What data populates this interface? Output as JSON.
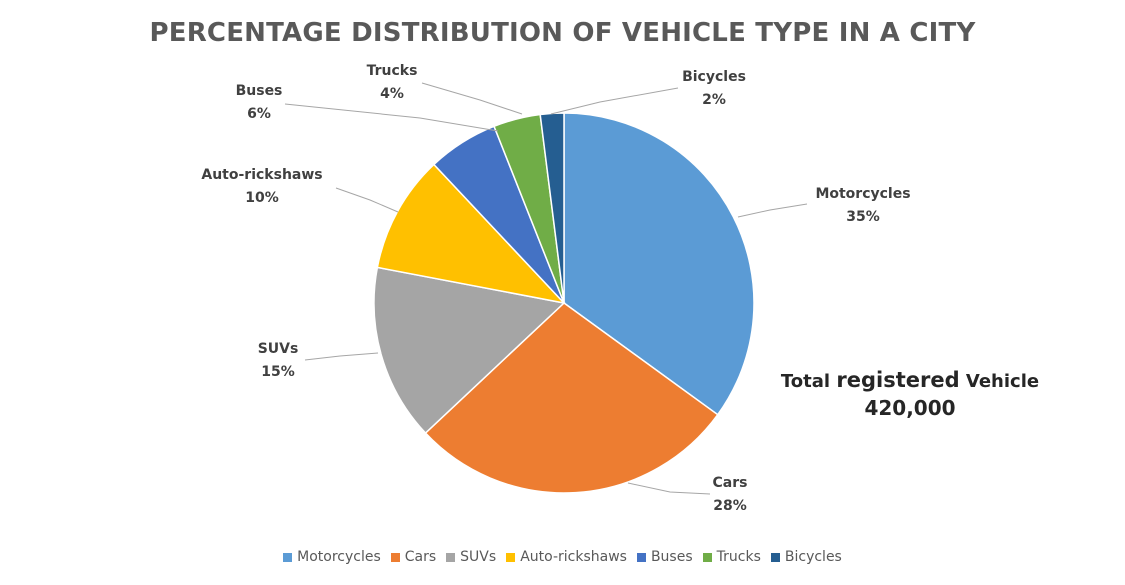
{
  "chart_data": {
    "type": "pie",
    "title": "PERCENTAGE DISTRIBUTION OF VEHICLE TYPE IN A CITY",
    "slices": [
      {
        "label": "Motorcycles",
        "value": 35,
        "value_label": "35%",
        "color": "#5B9BD5"
      },
      {
        "label": "Cars",
        "value": 28,
        "value_label": "28%",
        "color": "#ED7D31"
      },
      {
        "label": "SUVs",
        "value": 15,
        "value_label": "15%",
        "color": "#A5A5A5"
      },
      {
        "label": "Auto-rickshaws",
        "value": 10,
        "value_label": "10%",
        "color": "#FFC000"
      },
      {
        "label": "Buses",
        "value": 6,
        "value_label": "6%",
        "color": "#4472C4"
      },
      {
        "label": "Trucks",
        "value": 4,
        "value_label": "4%",
        "color": "#70AD47"
      },
      {
        "label": "Bicycles",
        "value": 2,
        "value_label": "2%",
        "color": "#255E91"
      }
    ],
    "legend_position": "bottom",
    "annotation": {
      "prefix": "Total",
      "emphasis": "registered",
      "suffix": "Vehicle",
      "value": "420,000"
    }
  }
}
